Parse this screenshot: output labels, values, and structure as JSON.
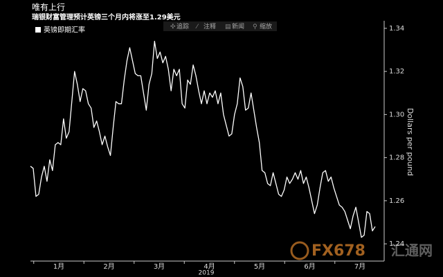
{
  "chart_data": {
    "type": "line",
    "title": "唯有上行",
    "subtitle": "瑞银财富管理预计英镑三个月内将涨至1.29美元",
    "ylabel": "Dollars per pound",
    "month_labels": [
      "1月",
      "2月",
      "3月",
      "4月",
      "5月",
      "6月",
      "7月"
    ],
    "year_label": "2019",
    "ylim": [
      1.232,
      1.3435
    ],
    "yticks": [
      1.24,
      1.26,
      1.28,
      {
        "value": 1.3,
        "label": "1.30"
      },
      1.32,
      1.34
    ],
    "series": [
      {
        "name": "英镑即期汇率",
        "color": "#ffffff",
        "values": [
          1.276,
          1.275,
          1.262,
          1.263,
          1.271,
          1.276,
          1.269,
          1.279,
          1.274,
          1.286,
          1.287,
          1.286,
          1.298,
          1.289,
          1.292,
          1.306,
          1.32,
          1.314,
          1.306,
          1.312,
          1.311,
          1.305,
          1.303,
          1.294,
          1.297,
          1.292,
          1.286,
          1.29,
          1.285,
          1.281,
          1.294,
          1.306,
          1.305,
          1.305,
          1.316,
          1.325,
          1.331,
          1.325,
          1.319,
          1.318,
          1.318,
          1.31,
          1.302,
          1.314,
          1.319,
          1.334,
          1.326,
          1.329,
          1.324,
          1.327,
          1.321,
          1.311,
          1.321,
          1.318,
          1.321,
          1.305,
          1.303,
          1.316,
          1.314,
          1.323,
          1.318,
          1.311,
          1.305,
          1.311,
          1.305,
          1.31,
          1.308,
          1.311,
          1.305,
          1.31,
          1.3,
          1.295,
          1.29,
          1.291,
          1.3,
          1.305,
          1.317,
          1.313,
          1.302,
          1.303,
          1.31,
          1.302,
          1.294,
          1.287,
          1.274,
          1.273,
          1.268,
          1.267,
          1.273,
          1.268,
          1.263,
          1.262,
          1.265,
          1.271,
          1.268,
          1.27,
          1.273,
          1.27,
          1.274,
          1.268,
          1.271,
          1.266,
          1.26,
          1.254,
          1.258,
          1.266,
          1.273,
          1.274,
          1.269,
          1.271,
          1.266,
          1.262,
          1.258,
          1.257,
          1.255,
          1.251,
          1.247,
          1.253,
          1.257,
          1.25,
          1.243,
          1.244,
          1.255,
          1.254,
          1.246,
          1.248
        ]
      }
    ]
  },
  "toolbar": [
    "追踪",
    "注释",
    "新闻",
    "缩放"
  ],
  "watermark": {
    "brand": "FX678",
    "name": "汇通网"
  }
}
